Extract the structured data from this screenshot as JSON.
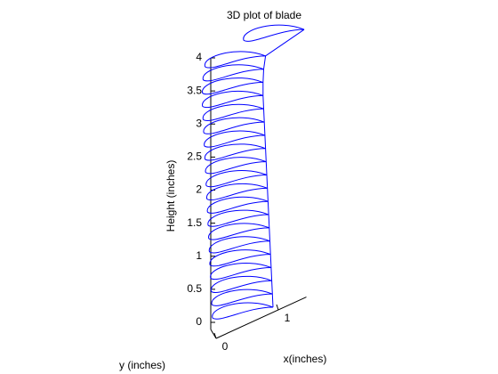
{
  "chart_data": {
    "type": "line3d",
    "title": "3D plot of blade",
    "zlabel": "Height (inches)",
    "xlabel": "x(inches)",
    "ylabel": "y (inches)",
    "color": "#0000ff",
    "x": [
      1.0,
      0.99,
      0.98,
      0.97,
      0.96,
      0.95,
      0.94,
      0.93,
      0.92,
      0.91,
      0.9,
      0.89,
      0.88,
      0.87,
      0.86,
      0.85,
      0.84,
      0.84,
      0.85,
      0.88,
      1.5
    ],
    "z": [
      0,
      0.2,
      0.4,
      0.6,
      0.8,
      1.0,
      1.2,
      1.4,
      1.6,
      1.8,
      2.0,
      2.2,
      2.4,
      2.6,
      2.8,
      3.0,
      3.2,
      3.4,
      3.6,
      3.8,
      4.2
    ],
    "zlim": [
      0,
      4
    ],
    "zticks": [
      0,
      0.5,
      1,
      1.5,
      2,
      2.5,
      3,
      3.5,
      4
    ],
    "xlim": [
      0,
      1.45
    ],
    "xticks": [
      0,
      1
    ]
  }
}
